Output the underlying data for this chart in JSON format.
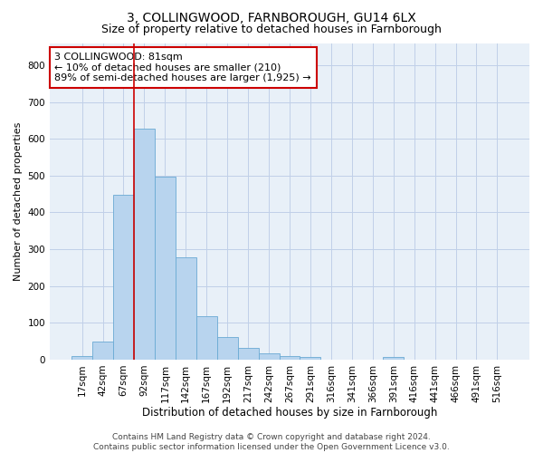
{
  "title": "3, COLLINGWOOD, FARNBOROUGH, GU14 6LX",
  "subtitle": "Size of property relative to detached houses in Farnborough",
  "xlabel": "Distribution of detached houses by size in Farnborough",
  "ylabel": "Number of detached properties",
  "bar_color": "#b8d4ee",
  "bar_edge_color": "#6aaad4",
  "grid_color": "#c0d0e8",
  "background_color": "#e8f0f8",
  "categories": [
    "17sqm",
    "42sqm",
    "67sqm",
    "92sqm",
    "117sqm",
    "142sqm",
    "167sqm",
    "192sqm",
    "217sqm",
    "242sqm",
    "267sqm",
    "291sqm",
    "316sqm",
    "341sqm",
    "366sqm",
    "391sqm",
    "416sqm",
    "441sqm",
    "466sqm",
    "491sqm",
    "516sqm"
  ],
  "values": [
    10,
    50,
    447,
    628,
    498,
    278,
    118,
    62,
    33,
    18,
    9,
    7,
    0,
    0,
    0,
    7,
    0,
    0,
    0,
    0,
    0
  ],
  "ylim": [
    0,
    860
  ],
  "yticks": [
    0,
    100,
    200,
    300,
    400,
    500,
    600,
    700,
    800
  ],
  "annotation_text_line1": "3 COLLINGWOOD: 81sqm",
  "annotation_text_line2": "← 10% of detached houses are smaller (210)",
  "annotation_text_line3": "89% of semi-detached houses are larger (1,925) →",
  "annotation_border_color": "#cc0000",
  "vline_x": 2.5,
  "vline_color": "#cc0000",
  "footer_text": "Contains HM Land Registry data © Crown copyright and database right 2024.\nContains public sector information licensed under the Open Government Licence v3.0.",
  "title_fontsize": 10,
  "subtitle_fontsize": 9,
  "xlabel_fontsize": 8.5,
  "ylabel_fontsize": 8,
  "tick_fontsize": 7.5,
  "footer_fontsize": 6.5,
  "annotation_fontsize": 8
}
